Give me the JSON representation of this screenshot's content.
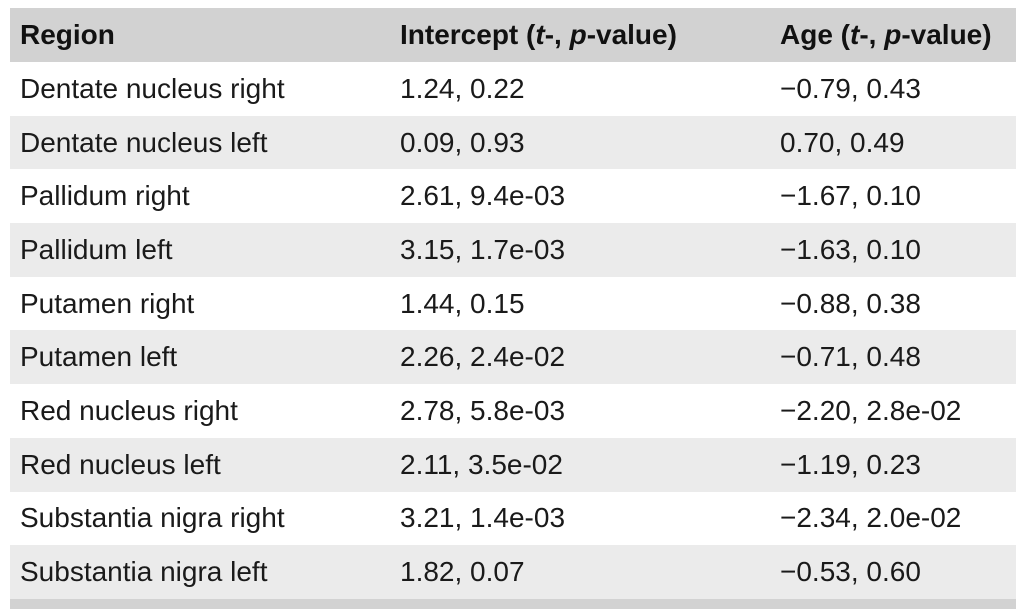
{
  "table": {
    "columns": {
      "region": "Region",
      "intercept": {
        "prefix": "Intercept (",
        "t": "t",
        "mid": "-, ",
        "p": "p",
        "suffix": "-value)"
      },
      "age": {
        "prefix": "Age (",
        "t": "t",
        "mid": "-, ",
        "p": "p",
        "suffix": "-value)"
      }
    },
    "rows": [
      {
        "region": "Dentate nucleus right",
        "intercept": "1.24, 0.22",
        "age": "−0.79, 0.43"
      },
      {
        "region": "Dentate nucleus left",
        "intercept": "0.09, 0.93",
        "age": "0.70, 0.49"
      },
      {
        "region": "Pallidum right",
        "intercept": "2.61, 9.4e-03",
        "age": "−1.67, 0.10"
      },
      {
        "region": "Pallidum left",
        "intercept": "3.15, 1.7e-03",
        "age": "−1.63, 0.10"
      },
      {
        "region": "Putamen right",
        "intercept": "1.44, 0.15",
        "age": "−0.88, 0.38"
      },
      {
        "region": "Putamen left",
        "intercept": "2.26, 2.4e-02",
        "age": "−0.71, 0.48"
      },
      {
        "region": "Red nucleus right",
        "intercept": "2.78, 5.8e-03",
        "age": "−2.20, 2.8e-02"
      },
      {
        "region": "Red nucleus left",
        "intercept": "2.11, 3.5e-02",
        "age": "−1.19, 0.23"
      },
      {
        "region": "Substantia nigra right",
        "intercept": "3.21, 1.4e-03",
        "age": "−2.34, 2.0e-02"
      },
      {
        "region": "Substantia nigra left",
        "intercept": "1.82, 0.07",
        "age": "−0.53, 0.60"
      }
    ],
    "colors": {
      "header_bg": "#d2d2d2",
      "row_alt_bg": "#ebebeb",
      "text": "#1a1a1a",
      "bottom_edge": "#d2d2d2"
    }
  }
}
